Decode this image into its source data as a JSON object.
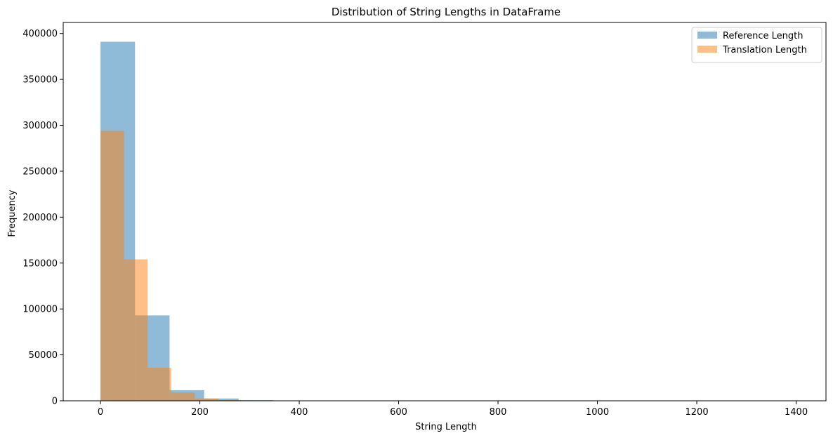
{
  "chart_data": {
    "type": "bar",
    "title": "Distribution of String Lengths in DataFrame",
    "xlabel": "String Length",
    "ylabel": "Frequency",
    "xlim": [
      -75,
      1460
    ],
    "ylim": [
      0,
      412000
    ],
    "xticks": [
      0,
      200,
      400,
      600,
      800,
      1000,
      1200,
      1400
    ],
    "yticks": [
      0,
      50000,
      100000,
      150000,
      200000,
      250000,
      300000,
      350000,
      400000
    ],
    "legend_position": "top-right",
    "grid": false,
    "series": [
      {
        "name": "Reference Length",
        "color": "#1f77b4",
        "opacity": 0.5,
        "bins": [
          {
            "x0": 0,
            "x1": 69.5,
            "value": 391000
          },
          {
            "x0": 69.5,
            "x1": 139,
            "value": 93000
          },
          {
            "x0": 139,
            "x1": 208.5,
            "value": 11500
          },
          {
            "x0": 208.5,
            "x1": 278,
            "value": 2500
          },
          {
            "x0": 278,
            "x1": 347.5,
            "value": 700
          },
          {
            "x0": 347.5,
            "x1": 417,
            "value": 150
          },
          {
            "x0": 417,
            "x1": 486.5,
            "value": 50
          },
          {
            "x0": 486.5,
            "x1": 556,
            "value": 20
          }
        ]
      },
      {
        "name": "Translation Length",
        "color": "#ff7f0e",
        "opacity": 0.5,
        "bins": [
          {
            "x0": 0,
            "x1": 47.5,
            "value": 294000
          },
          {
            "x0": 47.5,
            "x1": 95,
            "value": 154000
          },
          {
            "x0": 95,
            "x1": 142.5,
            "value": 36000
          },
          {
            "x0": 142.5,
            "x1": 190,
            "value": 9000
          },
          {
            "x0": 190,
            "x1": 237.5,
            "value": 2500
          },
          {
            "x0": 237.5,
            "x1": 285,
            "value": 800
          },
          {
            "x0": 285,
            "x1": 332.5,
            "value": 250
          },
          {
            "x0": 332.5,
            "x1": 380,
            "value": 80
          }
        ]
      }
    ]
  }
}
